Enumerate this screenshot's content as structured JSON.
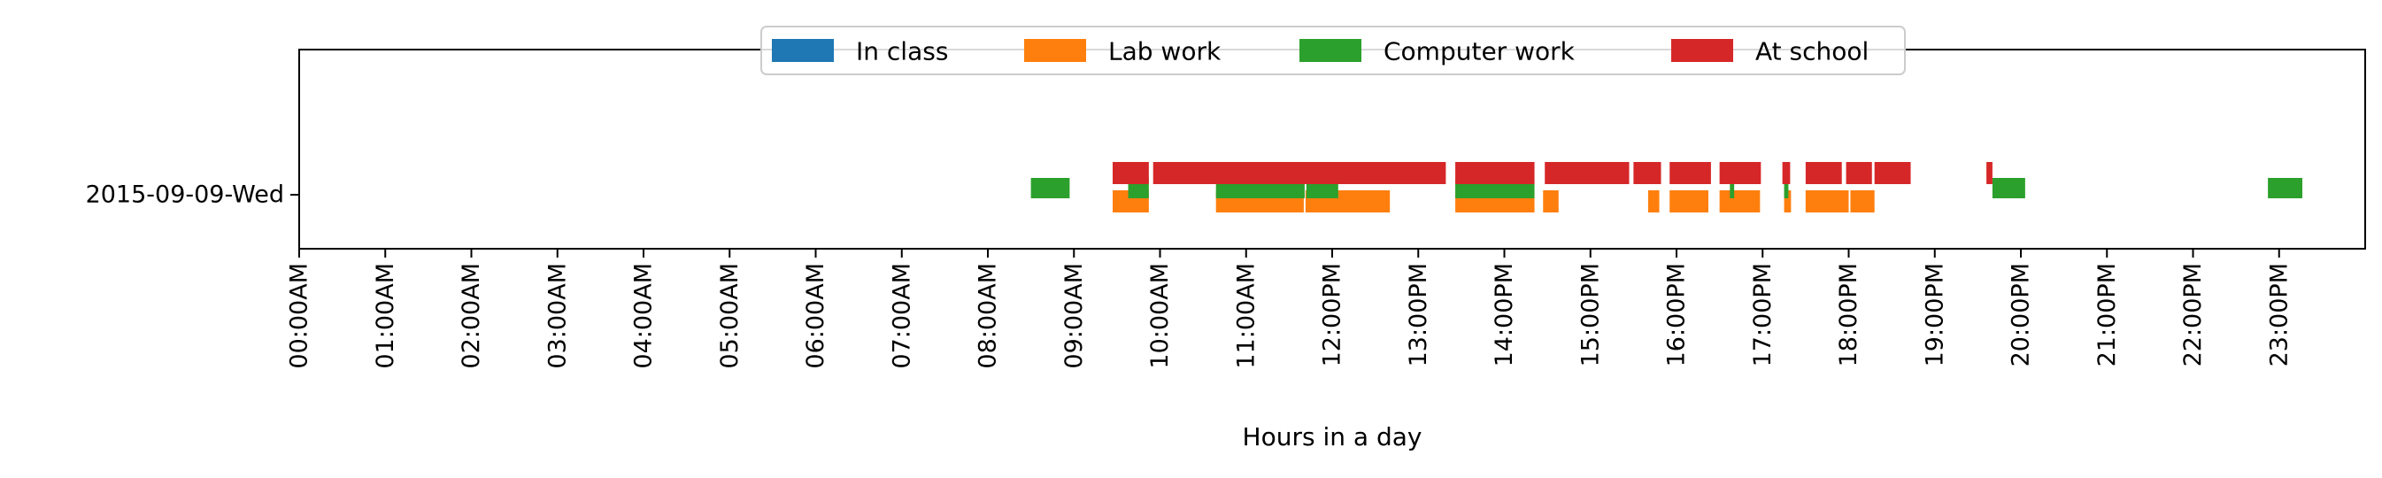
{
  "chart_data": {
    "type": "bar",
    "orientation": "horizontal-timeline",
    "xlabel": "Hours in a day",
    "ylabel": "",
    "xlim": [
      0,
      24
    ],
    "x_ticks": [
      "00:00AM",
      "01:00AM",
      "02:00AM",
      "03:00AM",
      "04:00AM",
      "05:00AM",
      "06:00AM",
      "07:00AM",
      "08:00AM",
      "09:00AM",
      "10:00AM",
      "11:00AM",
      "12:00PM",
      "13:00PM",
      "14:00PM",
      "15:00PM",
      "16:00PM",
      "17:00PM",
      "18:00PM",
      "19:00PM",
      "20:00PM",
      "21:00PM",
      "22:00PM",
      "23:00PM"
    ],
    "categories": [
      "2015-09-09-Wed"
    ],
    "legend_position": "top-center",
    "grid": false,
    "series": [
      {
        "name": "In class",
        "color": "#1f77b4",
        "lane": "top",
        "intervals": []
      },
      {
        "name": "Lab work",
        "color": "#ff7f0e",
        "lane": "bottom",
        "intervals": [
          [
            9.45,
            9.87
          ],
          [
            10.65,
            11.67
          ],
          [
            11.69,
            12.67
          ],
          [
            13.43,
            14.35
          ],
          [
            14.45,
            14.63
          ],
          [
            15.67,
            15.8
          ],
          [
            15.92,
            16.37
          ],
          [
            16.5,
            16.97
          ],
          [
            17.25,
            17.33
          ],
          [
            17.5,
            18.0
          ],
          [
            18.02,
            18.3
          ]
        ]
      },
      {
        "name": "Computer work",
        "color": "#2ca02c",
        "lane": "middle",
        "intervals": [
          [
            8.5,
            8.95
          ],
          [
            9.63,
            9.87
          ],
          [
            10.65,
            11.68
          ],
          [
            11.7,
            12.07
          ],
          [
            13.43,
            14.35
          ],
          [
            16.62,
            16.67
          ],
          [
            17.25,
            17.3
          ],
          [
            19.67,
            20.05
          ],
          [
            22.87,
            23.27
          ]
        ]
      },
      {
        "name": "At school",
        "color": "#d62728",
        "lane": "top",
        "intervals": [
          [
            9.45,
            9.87
          ],
          [
            9.92,
            13.32
          ],
          [
            13.43,
            14.35
          ],
          [
            14.47,
            15.45
          ],
          [
            15.5,
            15.82
          ],
          [
            15.92,
            16.4
          ],
          [
            16.5,
            16.98
          ],
          [
            17.23,
            17.32
          ],
          [
            17.5,
            17.92
          ],
          [
            17.97,
            18.27
          ],
          [
            18.3,
            18.72
          ],
          [
            19.6,
            19.67
          ]
        ]
      }
    ]
  }
}
